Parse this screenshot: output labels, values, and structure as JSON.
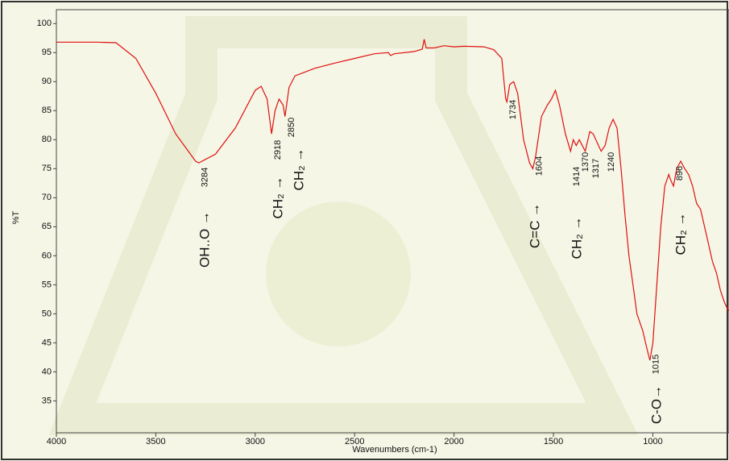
{
  "chart_data": {
    "type": "line",
    "x_label": "Wavenumbers (cm-1)",
    "y_label": "%T",
    "color": "#e01010",
    "xlim": [
      4000,
      617
    ],
    "ylim": [
      29.5,
      102.4
    ],
    "xticks": [
      4000,
      3500,
      3000,
      2500,
      2000,
      1500,
      1000
    ],
    "yticks": [
      35,
      40,
      45,
      50,
      55,
      60,
      65,
      70,
      75,
      80,
      85,
      90,
      95,
      100
    ],
    "x": [
      4000,
      3800,
      3700,
      3600,
      3500,
      3400,
      3300,
      3284,
      3200,
      3100,
      3000,
      2970,
      2940,
      2918,
      2900,
      2880,
      2860,
      2850,
      2830,
      2800,
      2700,
      2600,
      2500,
      2400,
      2330,
      2320,
      2300,
      2200,
      2160,
      2150,
      2140,
      2100,
      2050,
      2000,
      1950,
      1850,
      1800,
      1760,
      1740,
      1734,
      1720,
      1700,
      1680,
      1650,
      1620,
      1604,
      1590,
      1560,
      1530,
      1510,
      1490,
      1470,
      1440,
      1414,
      1400,
      1385,
      1370,
      1340,
      1317,
      1300,
      1260,
      1240,
      1220,
      1200,
      1180,
      1160,
      1140,
      1120,
      1100,
      1080,
      1050,
      1030,
      1015,
      1000,
      980,
      960,
      940,
      920,
      910,
      896,
      880,
      860,
      840,
      820,
      800,
      780,
      760,
      740,
      720,
      700,
      680,
      660,
      640,
      620
    ],
    "values": [
      96.8,
      96.8,
      96.7,
      94,
      88,
      81,
      76.3,
      76,
      77.5,
      82,
      88.5,
      89.2,
      87,
      81,
      85,
      87,
      86,
      84,
      89,
      91,
      92.3,
      93.2,
      94,
      94.8,
      95,
      94.5,
      94.8,
      95.2,
      95.6,
      97.3,
      95.8,
      95.8,
      96.2,
      96,
      96.1,
      96,
      95.5,
      94,
      87,
      86.5,
      89.5,
      90,
      88,
      80,
      76,
      75,
      77,
      84,
      86,
      87,
      88.5,
      86,
      81,
      78,
      80,
      79,
      80,
      78,
      81.4,
      81,
      78,
      79,
      82,
      83.5,
      82,
      75,
      67,
      60,
      55,
      50,
      47,
      44,
      42,
      45,
      55,
      65,
      72,
      74,
      73,
      72,
      75,
      76.3,
      75,
      74,
      72,
      69,
      68,
      65,
      62,
      59,
      57,
      54,
      52,
      50.5
    ],
    "peaks": [
      3284,
      2918,
      2850,
      1734,
      1604,
      1414,
      1370,
      1317,
      1240,
      1015,
      896
    ],
    "group_labels": [
      "OH..O →",
      "CH₂ →",
      "CH₂ →",
      "C=C →",
      "CH₂ →",
      "C-O→",
      "CH₂ →"
    ]
  }
}
